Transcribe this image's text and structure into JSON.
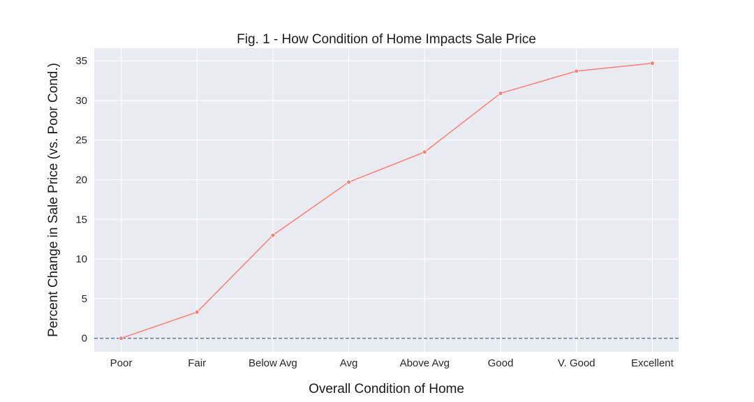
{
  "chart_data": {
    "type": "line",
    "title": "Fig. 1 - How Condition of Home Impacts Sale Price",
    "xlabel": "Overall Condition of Home",
    "ylabel": "Percent Change in Sale Price (vs. Poor Cond.)",
    "categories": [
      "Poor",
      "Fair",
      "Below Avg",
      "Avg",
      "Above Avg",
      "Good",
      "V. Good",
      "Excellent"
    ],
    "series": [
      {
        "values": [
          0,
          3.3,
          13.0,
          19.7,
          23.5,
          30.9,
          33.7,
          34.7
        ],
        "color": "#FA8072"
      }
    ],
    "reference_line": {
      "y": 0,
      "style": "dashed",
      "color": "#4C72B0"
    },
    "yticks": [
      0,
      5,
      10,
      15,
      20,
      25,
      30,
      35
    ],
    "ylim": [
      -1.7,
      36.6
    ],
    "grid": true,
    "background": "#EAEAF2"
  }
}
